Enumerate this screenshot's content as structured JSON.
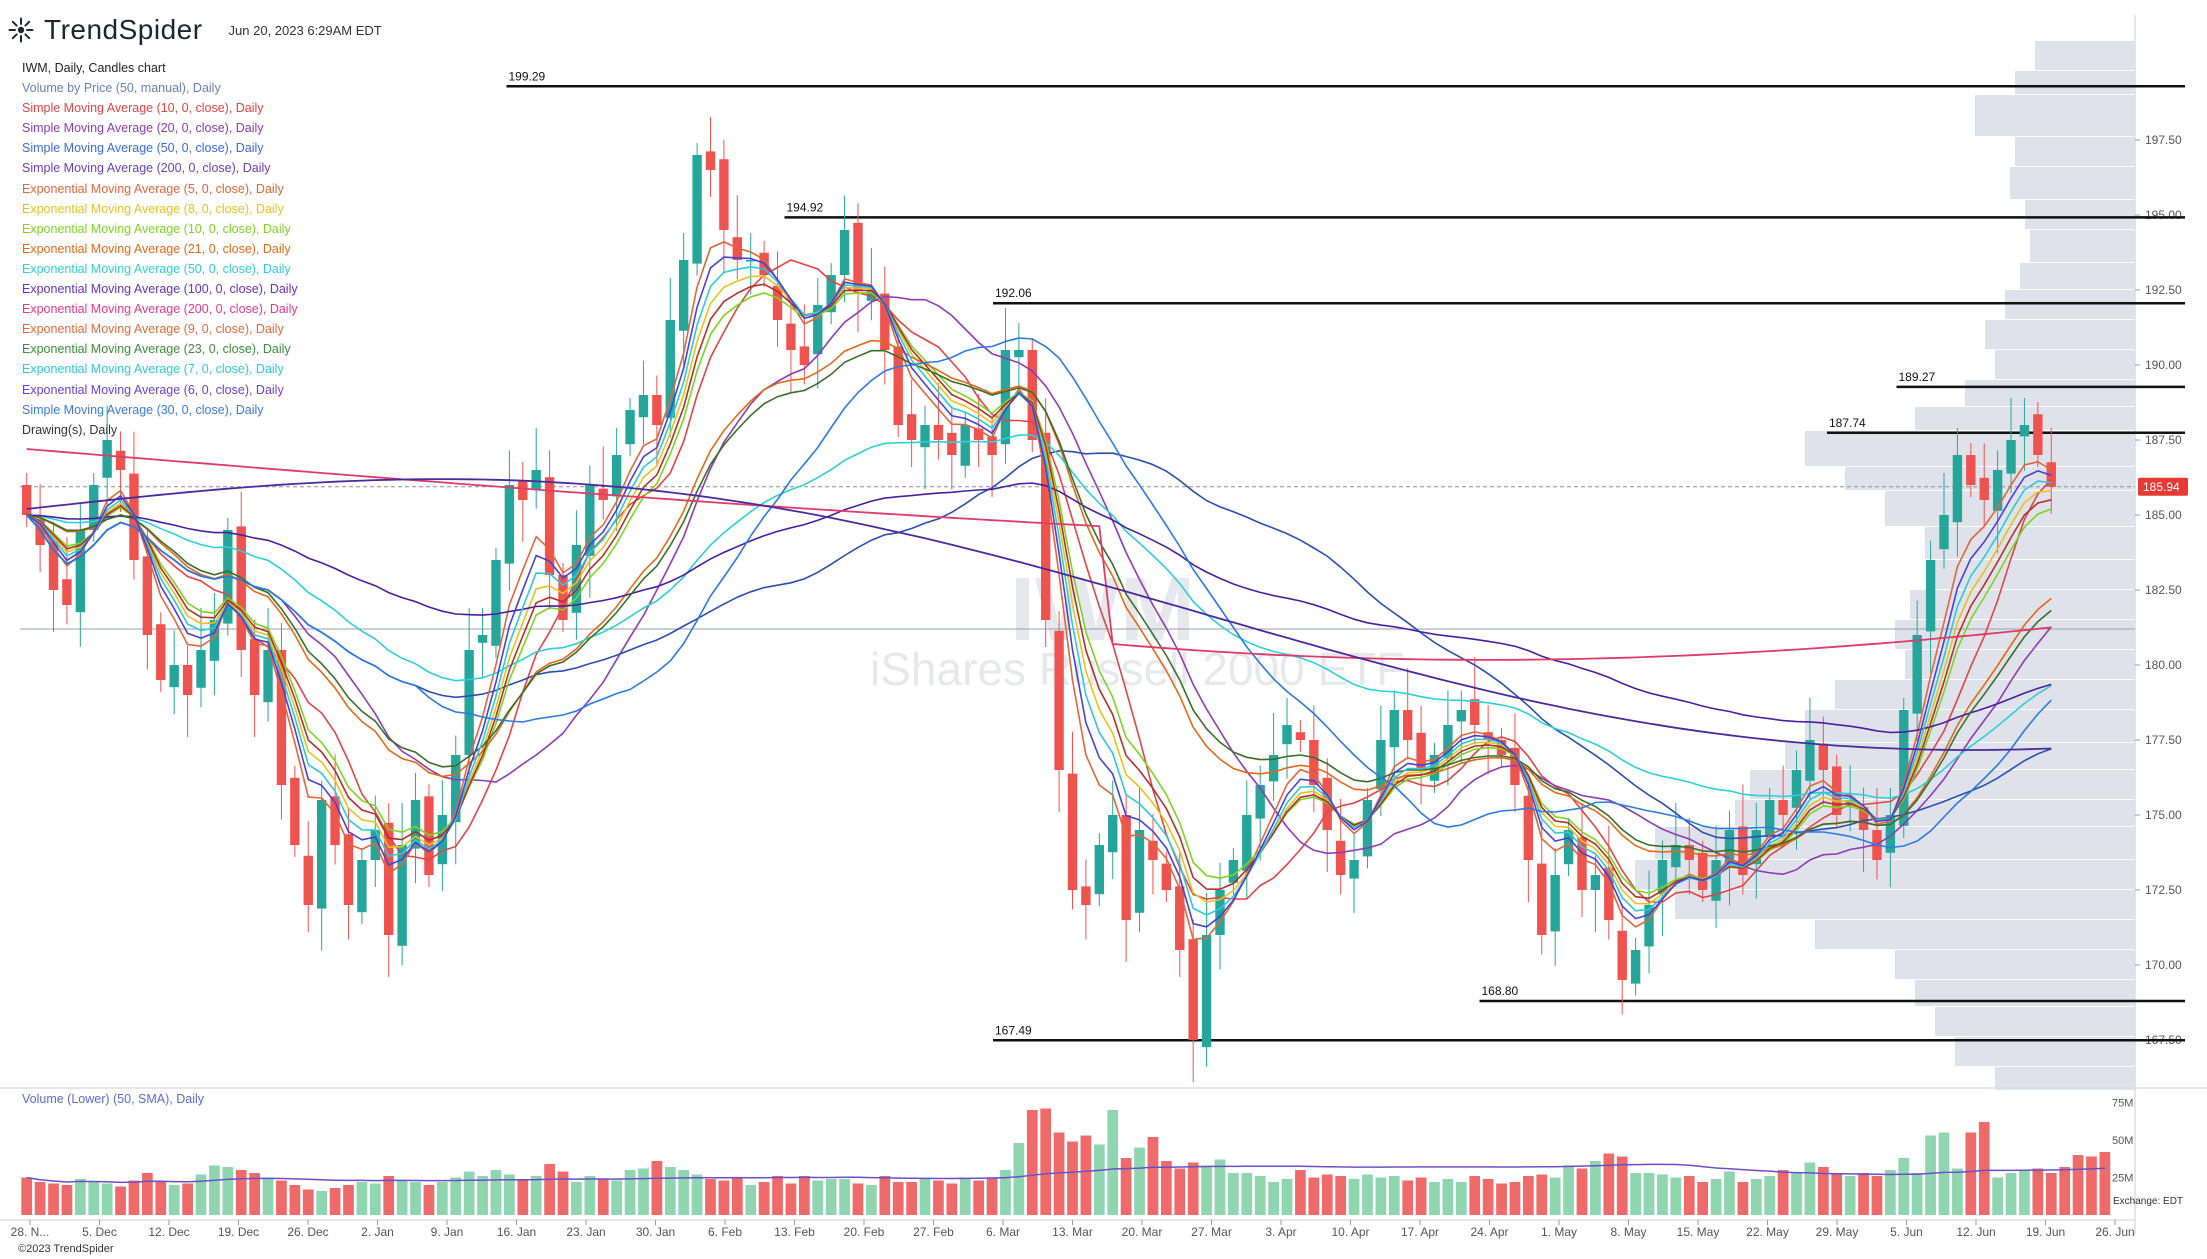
{
  "header": {
    "brand": "TrendSpider",
    "timestamp": "Jun 20, 2023 6:29AM EDT"
  },
  "watermark": {
    "ticker": "IWM",
    "name": "iShares Russell 2000 ETF"
  },
  "legend": [
    {
      "label": "IWM, Daily, Candles chart",
      "color": "#222222"
    },
    {
      "label": "Volume by Price (50, manual), Daily",
      "color": "#6b7fb0"
    },
    {
      "label": "Simple Moving Average (10, 0, close), Daily",
      "color": "#e04545"
    },
    {
      "label": "Simple Moving Average (20, 0, close), Daily",
      "color": "#8e3bb5"
    },
    {
      "label": "Simple Moving Average (50, 0, close), Daily",
      "color": "#3b6cd6"
    },
    {
      "label": "Simple Moving Average (200, 0, close), Daily",
      "color": "#6b3fb5"
    },
    {
      "label": "Exponential Moving Average (5, 0, close), Daily",
      "color": "#e0663a"
    },
    {
      "label": "Exponential Moving Average (8, 0, close), Daily",
      "color": "#e6c21e"
    },
    {
      "label": "Exponential Moving Average (10, 0, close), Daily",
      "color": "#7ed321"
    },
    {
      "label": "Exponential Moving Average (21, 0, close), Daily",
      "color": "#e06a1a"
    },
    {
      "label": "Exponential Moving Average (50, 0, close), Daily",
      "color": "#2ecfd6"
    },
    {
      "label": "Exponential Moving Average (100, 0, close), Daily",
      "color": "#6a2fbf"
    },
    {
      "label": "Exponential Moving Average (200, 0, close), Daily",
      "color": "#e03a8a"
    },
    {
      "label": "Exponential Moving Average (9, 0, close), Daily",
      "color": "#e06a3a"
    },
    {
      "label": "Exponential Moving Average (23, 0, close), Daily",
      "color": "#3a8f3a"
    },
    {
      "label": "Exponential Moving Average (7, 0, close), Daily",
      "color": "#2ec9d6"
    },
    {
      "label": "Exponential Moving Average (6, 0, close), Daily",
      "color": "#6a40d6"
    },
    {
      "label": "Simple Moving Average (30, 0, close), Daily",
      "color": "#3a7ae0"
    },
    {
      "label": "Drawing(s), Daily",
      "color": "#333333"
    }
  ],
  "volume_label": "Volume (Lower) (50, SMA), Daily",
  "footer": {
    "copyright": "©2023 TrendSpider",
    "exchange": "Exchange: EDT"
  },
  "colors": {
    "up": "#26a69a",
    "down": "#ef5350",
    "up_vol": "#8fd6b0",
    "down_vol": "#ef6b6b",
    "vbp": "#d9dde7",
    "price_tag": "#e53935"
  },
  "chart_data": {
    "type": "candlestick",
    "ticker": "IWM",
    "interval": "Daily",
    "y_range": [
      166.0,
      201.5
    ],
    "y_ticks": [
      "167.50",
      "170.00",
      "172.50",
      "175.00",
      "177.50",
      "180.00",
      "182.50",
      "185.00",
      "187.50",
      "190.00",
      "192.50",
      "195.00",
      "197.50"
    ],
    "x_ticks": [
      "28. N...",
      "5. Dec",
      "12. Dec",
      "19. Dec",
      "26. Dec",
      "2. Jan",
      "9. Jan",
      "16. Jan",
      "23. Jan",
      "30. Jan",
      "6. Feb",
      "13. Feb",
      "20. Feb",
      "27. Feb",
      "6. Mar",
      "13. Mar",
      "20. Mar",
      "27. Mar",
      "3. Apr",
      "10. Apr",
      "17. Apr",
      "24. Apr",
      "1. May",
      "8. May",
      "15. May",
      "22. May",
      "29. May",
      "5. Jun",
      "12. Jun",
      "19. Jun",
      "26. Jun"
    ],
    "volume_ticks": [
      "25M",
      "50M",
      "75M"
    ],
    "volume_range": [
      0,
      80
    ],
    "current_price": "185.94",
    "levels": [
      {
        "price": 199.29,
        "label": "199.29",
        "start_tick": "16. Jan"
      },
      {
        "price": 194.92,
        "label": "194.92",
        "start_tick": "13. Feb"
      },
      {
        "price": 192.06,
        "label": "192.06",
        "start_tick": "6. Mar"
      },
      {
        "price": 189.27,
        "label": "189.27",
        "start_tick": "5. Jun"
      },
      {
        "price": 187.74,
        "label": "187.74",
        "start_tick": "29. May"
      },
      {
        "price": 168.8,
        "label": "168.80",
        "start_tick": "24. Apr"
      },
      {
        "price": 167.49,
        "label": "167.49",
        "start_tick": "6. Mar"
      }
    ],
    "dashed_line": 185.94,
    "solid_line": 181.2,
    "candles_close": [
      185.0,
      184.0,
      182.5,
      182.0,
      184.5,
      186.0,
      187.5,
      186.5,
      183.5,
      181.0,
      179.5,
      180.0,
      179.0,
      180.5,
      181.5,
      184.5,
      180.5,
      179.0,
      180.5,
      176.0,
      174.0,
      172.0,
      175.5,
      174.0,
      172.0,
      173.5,
      174.5,
      171.0,
      174.0,
      175.5,
      173.0,
      175.0,
      177.0,
      180.5,
      181.0,
      183.5,
      186.0,
      185.5,
      186.5,
      183.0,
      181.5,
      184.0,
      186.0,
      185.5,
      187.0,
      188.5,
      189.0,
      188.0,
      191.5,
      193.5,
      197.0,
      196.5,
      194.5,
      193.5,
      193.5,
      193.0,
      191.5,
      190.5,
      190.0,
      192.0,
      193.0,
      194.5,
      192.5,
      192.5,
      190.5,
      188.0,
      187.5,
      188.0,
      187.5,
      187.0,
      188.0,
      187.5,
      187.0,
      190.5,
      190.5,
      187.5,
      181.5,
      176.5,
      172.5,
      172.0,
      174.0,
      175.0,
      171.5,
      174.5,
      173.5,
      172.5,
      170.5,
      167.5,
      171.0,
      172.5,
      173.5,
      175.0,
      176.0,
      177.0,
      178.0,
      177.5,
      176.0,
      174.5,
      173.0,
      173.5,
      175.5,
      177.5,
      178.5,
      177.5,
      176.5,
      177.0,
      178.0,
      178.5,
      178.0,
      177.5,
      177.0,
      176.0,
      173.5,
      171.0,
      173.0,
      174.5,
      172.5,
      173.0,
      171.5,
      169.5,
      170.5,
      172.0,
      173.5,
      174.0,
      173.5,
      172.5,
      173.5,
      174.5,
      173.0,
      174.5,
      175.5,
      175.0,
      176.5,
      177.5,
      176.5,
      175.0,
      175.5,
      174.5,
      173.5,
      175.0,
      178.5,
      181.0,
      183.5,
      185.0,
      187.0,
      186.0,
      185.5,
      186.5,
      187.5,
      188.0,
      187.0,
      185.94
    ],
    "volume": [
      25,
      22,
      21,
      20,
      24,
      22,
      21,
      19,
      23,
      28,
      22,
      20,
      21,
      27,
      33,
      32,
      30,
      28,
      25,
      23,
      20,
      17,
      16,
      18,
      20,
      22,
      21,
      26,
      23,
      22,
      20,
      22,
      25,
      29,
      26,
      30,
      27,
      24,
      26,
      34,
      29,
      22,
      26,
      24,
      23,
      30,
      31,
      36,
      32,
      30,
      27,
      24,
      23,
      25,
      20,
      22,
      26,
      21,
      26,
      23,
      24,
      24,
      21,
      20,
      26,
      22,
      22,
      24,
      23,
      21,
      25,
      23,
      25,
      30,
      48,
      70,
      71,
      55,
      49,
      53,
      47,
      70,
      38,
      45,
      52,
      36,
      31,
      35,
      33,
      37,
      28,
      28,
      26,
      22,
      24,
      30,
      25,
      27,
      26,
      24,
      27,
      25,
      26,
      23,
      25,
      22,
      24,
      22,
      26,
      24,
      21,
      22,
      26,
      27,
      25,
      33,
      31,
      36,
      41,
      39,
      28,
      28,
      27,
      25,
      26,
      22,
      24,
      29,
      22,
      24,
      26,
      30,
      28,
      35,
      32,
      28,
      26,
      28,
      26,
      30,
      38,
      28,
      53,
      55,
      31,
      55,
      62,
      25,
      28,
      30,
      31,
      28,
      32,
      40,
      39,
      42
    ]
  }
}
